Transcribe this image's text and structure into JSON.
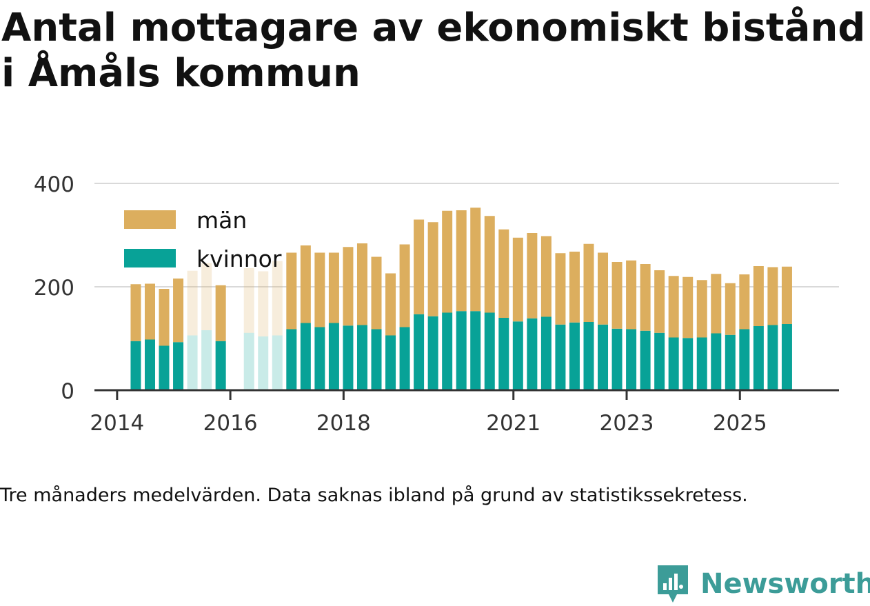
{
  "title": "Antal mottagare av ekonomiskt bistånd i Åmåls kommun",
  "note": "Tre månaders medelvärden. Data saknas ibland på grund av statistikssekretess.",
  "brand": "Newsworthy",
  "colors": {
    "man": "#dcae5e",
    "kvinnor": "#08a297",
    "grid": "#d9d9d9",
    "axis": "#333333",
    "text": "#333333"
  },
  "chart_data": {
    "type": "bar",
    "stacked": true,
    "title": "Antal mottagare av ekonomiskt bistånd i Åmåls kommun",
    "xlabel": "",
    "ylabel": "",
    "ylim": [
      0,
      400
    ],
    "yticks": [
      0,
      200,
      400
    ],
    "xticks": [
      {
        "label": "2014",
        "t": 2014.0
      },
      {
        "label": "2016",
        "t": 2016.0
      },
      {
        "label": "2018",
        "t": 2018.0
      },
      {
        "label": "2021",
        "t": 2021.0
      },
      {
        "label": "2023",
        "t": 2023.0
      },
      {
        "label": "2025",
        "t": 2025.0
      }
    ],
    "legend_position": "top-left",
    "series": [
      {
        "name": "män",
        "key": "man"
      },
      {
        "name": "kvinnor",
        "key": "kvinnor"
      }
    ],
    "bars": [
      {
        "t": 2014.33,
        "kvinnor": 95,
        "man": 110
      },
      {
        "t": 2014.58,
        "kvinnor": 98,
        "man": 108
      },
      {
        "t": 2014.83,
        "kvinnor": 86,
        "man": 110
      },
      {
        "t": 2015.08,
        "kvinnor": 93,
        "man": 123
      },
      {
        "t": 2015.33,
        "kvinnor": 106,
        "man": 125,
        "faded": true
      },
      {
        "t": 2015.58,
        "kvinnor": 116,
        "man": 130,
        "faded": true
      },
      {
        "t": 2015.83,
        "kvinnor": 95,
        "man": 108
      },
      {
        "t": 2016.33,
        "kvinnor": 111,
        "man": 125,
        "faded": true
      },
      {
        "t": 2016.58,
        "kvinnor": 104,
        "man": 126,
        "faded": true
      },
      {
        "t": 2016.83,
        "kvinnor": 106,
        "man": 144,
        "faded": true
      },
      {
        "t": 2017.08,
        "kvinnor": 118,
        "man": 148
      },
      {
        "t": 2017.33,
        "kvinnor": 130,
        "man": 150
      },
      {
        "t": 2017.58,
        "kvinnor": 122,
        "man": 144
      },
      {
        "t": 2017.83,
        "kvinnor": 130,
        "man": 136
      },
      {
        "t": 2018.08,
        "kvinnor": 125,
        "man": 152
      },
      {
        "t": 2018.33,
        "kvinnor": 126,
        "man": 158
      },
      {
        "t": 2018.58,
        "kvinnor": 118,
        "man": 140
      },
      {
        "t": 2018.83,
        "kvinnor": 106,
        "man": 120
      },
      {
        "t": 2019.08,
        "kvinnor": 122,
        "man": 160
      },
      {
        "t": 2019.33,
        "kvinnor": 147,
        "man": 183
      },
      {
        "t": 2019.58,
        "kvinnor": 143,
        "man": 182
      },
      {
        "t": 2019.83,
        "kvinnor": 150,
        "man": 197
      },
      {
        "t": 2020.08,
        "kvinnor": 153,
        "man": 195
      },
      {
        "t": 2020.33,
        "kvinnor": 153,
        "man": 200
      },
      {
        "t": 2020.58,
        "kvinnor": 150,
        "man": 187
      },
      {
        "t": 2020.83,
        "kvinnor": 140,
        "man": 171
      },
      {
        "t": 2021.08,
        "kvinnor": 133,
        "man": 162
      },
      {
        "t": 2021.33,
        "kvinnor": 139,
        "man": 165
      },
      {
        "t": 2021.58,
        "kvinnor": 142,
        "man": 156
      },
      {
        "t": 2021.83,
        "kvinnor": 127,
        "man": 138
      },
      {
        "t": 2022.08,
        "kvinnor": 131,
        "man": 137
      },
      {
        "t": 2022.33,
        "kvinnor": 132,
        "man": 151
      },
      {
        "t": 2022.58,
        "kvinnor": 127,
        "man": 139
      },
      {
        "t": 2022.83,
        "kvinnor": 119,
        "man": 129
      },
      {
        "t": 2023.08,
        "kvinnor": 118,
        "man": 133
      },
      {
        "t": 2023.33,
        "kvinnor": 115,
        "man": 129
      },
      {
        "t": 2023.58,
        "kvinnor": 111,
        "man": 121
      },
      {
        "t": 2023.83,
        "kvinnor": 102,
        "man": 119
      },
      {
        "t": 2024.08,
        "kvinnor": 101,
        "man": 118
      },
      {
        "t": 2024.33,
        "kvinnor": 102,
        "man": 111
      },
      {
        "t": 2024.58,
        "kvinnor": 110,
        "man": 115
      },
      {
        "t": 2024.83,
        "kvinnor": 107,
        "man": 100
      },
      {
        "t": 2025.08,
        "kvinnor": 118,
        "man": 106
      },
      {
        "t": 2025.33,
        "kvinnor": 124,
        "man": 116
      },
      {
        "t": 2025.58,
        "kvinnor": 126,
        "man": 112
      },
      {
        "t": 2025.83,
        "kvinnor": 128,
        "man": 111
      }
    ]
  }
}
